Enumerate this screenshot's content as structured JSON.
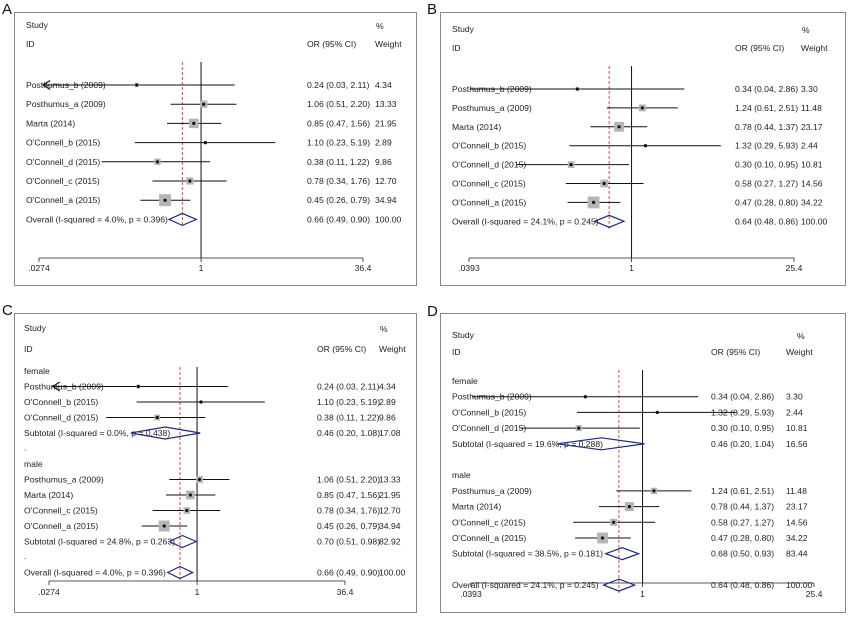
{
  "panels": [
    {
      "label": "A"
    },
    {
      "label": "B"
    },
    {
      "label": "C"
    },
    {
      "label": "D"
    }
  ],
  "chart_data": [
    {
      "type": "forest",
      "header": {
        "study": "Study",
        "id": "ID",
        "ci": "OR (95% CI)",
        "weight_pct": "%",
        "weight": "Weight"
      },
      "x_ticks": [
        ".0274",
        "1",
        "36.4"
      ],
      "xlim": [
        0.0274,
        36.4
      ],
      "log_scale": true,
      "null_line": 1,
      "pooled_line": 0.66,
      "rows": [
        {
          "kind": "study",
          "name": "Posthumus_b (2009)",
          "or": 0.24,
          "lo": 0.03,
          "hi": 2.11,
          "ci_text": "0.24 (0.03, 2.11)",
          "weight": "4.34",
          "arrow_left": true
        },
        {
          "kind": "study",
          "name": "Posthumus_a (2009)",
          "or": 1.06,
          "lo": 0.51,
          "hi": 2.2,
          "ci_text": "1.06 (0.51, 2.20)",
          "weight": "13.33"
        },
        {
          "kind": "study",
          "name": "Marta (2014)",
          "or": 0.85,
          "lo": 0.47,
          "hi": 1.56,
          "ci_text": "0.85 (0.47, 1.56)",
          "weight": "21.95"
        },
        {
          "kind": "study",
          "name": "O'Connell_b (2015)",
          "or": 1.1,
          "lo": 0.23,
          "hi": 5.19,
          "ci_text": "1.10 (0.23, 5.19)",
          "weight": "2.89"
        },
        {
          "kind": "study",
          "name": "O'Connell_d (2015)",
          "or": 0.38,
          "lo": 0.11,
          "hi": 1.22,
          "ci_text": "0.38 (0.11, 1.22)",
          "weight": "9.86"
        },
        {
          "kind": "study",
          "name": "O'Connell_c (2015)",
          "or": 0.78,
          "lo": 0.34,
          "hi": 1.76,
          "ci_text": "0.78 (0.34, 1.76)",
          "weight": "12.70"
        },
        {
          "kind": "study",
          "name": "O'Connell_a (2015)",
          "or": 0.45,
          "lo": 0.26,
          "hi": 0.79,
          "ci_text": "0.45 (0.26, 0.79)",
          "weight": "34.94"
        },
        {
          "kind": "overall",
          "name": "Overall  (I-squared = 4.0%, p = 0.396)",
          "or": 0.66,
          "lo": 0.49,
          "hi": 0.9,
          "ci_text": "0.66 (0.49, 0.90)",
          "weight": "100.00"
        }
      ]
    },
    {
      "type": "forest",
      "header": {
        "study": "Study",
        "id": "ID",
        "ci": "OR (95% CI)",
        "weight_pct": "%",
        "weight": "Weight"
      },
      "x_ticks": [
        ".0393",
        "1",
        "25.4"
      ],
      "xlim": [
        0.0393,
        25.4
      ],
      "log_scale": true,
      "null_line": 1,
      "pooled_line": 0.64,
      "rows": [
        {
          "kind": "study",
          "name": "Posthumus_b (2009)",
          "or": 0.34,
          "lo": 0.04,
          "hi": 2.86,
          "ci_text": "0.34 (0.04, 2.86)",
          "weight": "3.30"
        },
        {
          "kind": "study",
          "name": "Posthumus_a (2009)",
          "or": 1.24,
          "lo": 0.61,
          "hi": 2.51,
          "ci_text": "1.24 (0.61, 2.51)",
          "weight": "11.48"
        },
        {
          "kind": "study",
          "name": "Marta (2014)",
          "or": 0.78,
          "lo": 0.44,
          "hi": 1.37,
          "ci_text": "0.78 (0.44, 1.37)",
          "weight": "23.17"
        },
        {
          "kind": "study",
          "name": "O'Connell_b (2015)",
          "or": 1.32,
          "lo": 0.29,
          "hi": 5.93,
          "ci_text": "1.32 (0.29, 5.93)",
          "weight": "2.44"
        },
        {
          "kind": "study",
          "name": "O'Connell_d (2015)",
          "or": 0.3,
          "lo": 0.1,
          "hi": 0.95,
          "ci_text": "0.30 (0.10, 0.95)",
          "weight": "10.81"
        },
        {
          "kind": "study",
          "name": "O'Connell_c (2015)",
          "or": 0.58,
          "lo": 0.27,
          "hi": 1.27,
          "ci_text": "0.58 (0.27, 1.27)",
          "weight": "14.56"
        },
        {
          "kind": "study",
          "name": "O'Connell_a (2015)",
          "or": 0.47,
          "lo": 0.28,
          "hi": 0.8,
          "ci_text": "0.47 (0.28, 0.80)",
          "weight": "34.22"
        },
        {
          "kind": "overall",
          "name": "Overall  (I-squared = 24.1%, p = 0.245)",
          "or": 0.64,
          "lo": 0.48,
          "hi": 0.86,
          "ci_text": "0.64 (0.48, 0.86)",
          "weight": "100.00"
        }
      ]
    },
    {
      "type": "forest",
      "header": {
        "study": "Study",
        "id": "ID",
        "ci": "OR (95% CI)",
        "weight_pct": "%",
        "weight": "Weight"
      },
      "x_ticks": [
        ".0274",
        "1",
        "36.4"
      ],
      "xlim": [
        0.0274,
        36.4
      ],
      "log_scale": true,
      "null_line": 1,
      "pooled_line": 0.66,
      "rows": [
        {
          "kind": "group",
          "name": "female"
        },
        {
          "kind": "study",
          "name": "Posthumus_b (2009)",
          "or": 0.24,
          "lo": 0.03,
          "hi": 2.11,
          "ci_text": "0.24 (0.03, 2.11)",
          "weight": "4.34",
          "arrow_left": true
        },
        {
          "kind": "study",
          "name": "O'Connell_b (2015)",
          "or": 1.1,
          "lo": 0.23,
          "hi": 5.19,
          "ci_text": "1.10 (0.23, 5.19)",
          "weight": "2.89"
        },
        {
          "kind": "study",
          "name": "O'Connell_d (2015)",
          "or": 0.38,
          "lo": 0.11,
          "hi": 1.22,
          "ci_text": "0.38 (0.11, 1.22)",
          "weight": "9.86"
        },
        {
          "kind": "subtotal",
          "name": "Subtotal  (I-squared = 0.0%, p = 0.438)",
          "or": 0.46,
          "lo": 0.2,
          "hi": 1.08,
          "ci_text": "0.46 (0.20, 1.08)",
          "weight": "17.08"
        },
        {
          "kind": "dot"
        },
        {
          "kind": "group",
          "name": "male"
        },
        {
          "kind": "study",
          "name": "Posthumus_a (2009)",
          "or": 1.06,
          "lo": 0.51,
          "hi": 2.2,
          "ci_text": "1.06 (0.51, 2.20)",
          "weight": "13.33"
        },
        {
          "kind": "study",
          "name": "Marta (2014)",
          "or": 0.85,
          "lo": 0.47,
          "hi": 1.56,
          "ci_text": "0.85 (0.47, 1.56)",
          "weight": "21.95"
        },
        {
          "kind": "study",
          "name": "O'Connell_c (2015)",
          "or": 0.78,
          "lo": 0.34,
          "hi": 1.76,
          "ci_text": "0.78 (0.34, 1.76)",
          "weight": "12.70"
        },
        {
          "kind": "study",
          "name": "O'Connell_a (2015)",
          "or": 0.45,
          "lo": 0.26,
          "hi": 0.79,
          "ci_text": "0.45 (0.26, 0.79)",
          "weight": "34.94"
        },
        {
          "kind": "subtotal",
          "name": "Subtotal  (I-squared = 24.8%, p = 0.263)",
          "or": 0.7,
          "lo": 0.51,
          "hi": 0.98,
          "ci_text": "0.70 (0.51, 0.98)",
          "weight": "82.92"
        },
        {
          "kind": "dot"
        },
        {
          "kind": "overall",
          "name": "Overall  (I-squared = 4.0%, p = 0.396)",
          "or": 0.66,
          "lo": 0.49,
          "hi": 0.9,
          "ci_text": "0.66 (0.49, 0.90)",
          "weight": "100.00"
        }
      ]
    },
    {
      "type": "forest",
      "header": {
        "study": "Study",
        "id": "ID",
        "ci": "OR (95% CI)",
        "weight_pct": "%",
        "weight": "Weight"
      },
      "x_ticks": [
        ".0393",
        "1",
        "25.4"
      ],
      "xlim": [
        0.0393,
        25.4
      ],
      "log_scale": true,
      "null_line": 1,
      "pooled_line": 0.64,
      "rows": [
        {
          "kind": "group",
          "name": "female"
        },
        {
          "kind": "study",
          "name": "Posthumus_b (2009)",
          "or": 0.34,
          "lo": 0.04,
          "hi": 2.86,
          "ci_text": "0.34 (0.04, 2.86)",
          "weight": "3.30"
        },
        {
          "kind": "study",
          "name": "O'Connell_b (2015)",
          "or": 1.32,
          "lo": 0.29,
          "hi": 5.93,
          "ci_text": "1.32 (0.29, 5.93)",
          "weight": "2.44"
        },
        {
          "kind": "study",
          "name": "O'Connell_d (2015)",
          "or": 0.3,
          "lo": 0.1,
          "hi": 0.95,
          "ci_text": "0.30 (0.10, 0.95)",
          "weight": "10.81"
        },
        {
          "kind": "subtotal",
          "name": "Subtotal  (I-squared = 19.6%, p = 0.288)",
          "or": 0.46,
          "lo": 0.2,
          "hi": 1.04,
          "ci_text": "0.46 (0.20, 1.04)",
          "weight": "16.56"
        },
        {
          "kind": "blank"
        },
        {
          "kind": "group",
          "name": "male"
        },
        {
          "kind": "study",
          "name": "Posthumus_a (2009)",
          "or": 1.24,
          "lo": 0.61,
          "hi": 2.51,
          "ci_text": "1.24 (0.61, 2.51)",
          "weight": "11.48"
        },
        {
          "kind": "study",
          "name": "Marta (2014)",
          "or": 0.78,
          "lo": 0.44,
          "hi": 1.37,
          "ci_text": "0.78 (0.44, 1.37)",
          "weight": "23.17"
        },
        {
          "kind": "study",
          "name": "O'Connell_c (2015)",
          "or": 0.58,
          "lo": 0.27,
          "hi": 1.27,
          "ci_text": "0.58 (0.27, 1.27)",
          "weight": "14.56"
        },
        {
          "kind": "study",
          "name": "O'Connell_a (2015)",
          "or": 0.47,
          "lo": 0.28,
          "hi": 0.8,
          "ci_text": "0.47 (0.28, 0.80)",
          "weight": "34.22"
        },
        {
          "kind": "subtotal",
          "name": "Subtotal  (I-squared = 38.5%, p = 0.181)",
          "or": 0.68,
          "lo": 0.5,
          "hi": 0.93,
          "ci_text": "0.68 (0.50, 0.93)",
          "weight": "83.44"
        },
        {
          "kind": "blank"
        },
        {
          "kind": "overall",
          "name": "Overall  (I-squared = 24.1%, p = 0.245)",
          "or": 0.64,
          "lo": 0.48,
          "hi": 0.86,
          "ci_text": "0.64 (0.48, 0.86)",
          "weight": "100.00"
        }
      ]
    }
  ]
}
